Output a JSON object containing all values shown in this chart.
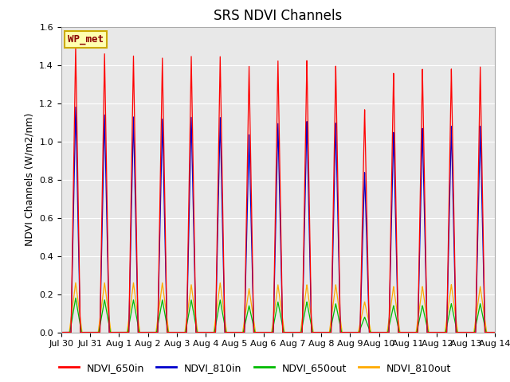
{
  "title": "SRS NDVI Channels",
  "ylabel": "NDVI Channels (W/m2/nm)",
  "ylim": [
    0.0,
    1.6
  ],
  "plot_bg_color": "#e8e8e8",
  "fig_bg_color": "#ffffff",
  "site_label": "WP_met",
  "legend_labels": [
    "NDVI_650in",
    "NDVI_810in",
    "NDVI_650out",
    "NDVI_810out"
  ],
  "line_colors": [
    "#ff0000",
    "#0000cc",
    "#00bb00",
    "#ffaa00"
  ],
  "num_days": 15,
  "peaks_650in": [
    1.5,
    1.46,
    1.45,
    1.44,
    1.45,
    1.45,
    1.4,
    1.43,
    1.43,
    1.4,
    1.17,
    1.36,
    1.38,
    1.38,
    1.39
  ],
  "peaks_810in": [
    1.18,
    1.14,
    1.13,
    1.12,
    1.13,
    1.13,
    1.04,
    1.1,
    1.11,
    1.1,
    0.84,
    1.05,
    1.07,
    1.08,
    1.08
  ],
  "peaks_650out": [
    0.18,
    0.17,
    0.17,
    0.17,
    0.17,
    0.17,
    0.14,
    0.16,
    0.16,
    0.15,
    0.08,
    0.14,
    0.14,
    0.15,
    0.15
  ],
  "peaks_810out": [
    0.26,
    0.26,
    0.26,
    0.26,
    0.25,
    0.26,
    0.23,
    0.25,
    0.25,
    0.25,
    0.16,
    0.24,
    0.24,
    0.25,
    0.24
  ],
  "x_tick_labels": [
    "Jul 30",
    "Jul 31",
    "Aug 1",
    "Aug 2",
    "Aug 3",
    "Aug 4",
    "Aug 5",
    "Aug 6",
    "Aug 7",
    "Aug 8",
    "Aug 9",
    "Aug 10",
    "Aug 11",
    "Aug 12",
    "Aug 13",
    "Aug 14"
  ],
  "title_fontsize": 12,
  "label_fontsize": 9,
  "tick_fontsize": 8,
  "legend_fontsize": 9
}
